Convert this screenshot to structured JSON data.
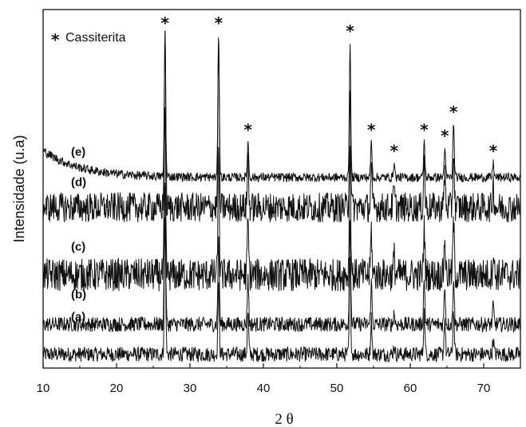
{
  "chart_data": {
    "type": "line",
    "xlabel": "2 θ",
    "ylabel": "Intensidade (u.a)",
    "xlim": [
      10,
      75
    ],
    "x_ticks": [
      10,
      20,
      30,
      40,
      50,
      60,
      70
    ],
    "y_ticks_shown": false,
    "grid": false,
    "legend": {
      "marker": "*",
      "label": "Cassiterita",
      "placement": "top-left"
    },
    "peak_marker": "*",
    "peak_positions": [
      26.6,
      33.9,
      37.9,
      51.8,
      54.7,
      57.8,
      61.9,
      64.7,
      65.9,
      71.3
    ],
    "series": [
      {
        "name": "(a)",
        "baseline": 0.3,
        "noise": 0.25,
        "peaks": [
          {
            "x": 26.6,
            "height": 4.6
          },
          {
            "x": 33.9,
            "height": 2.4
          },
          {
            "x": 37.9,
            "height": 1.4
          },
          {
            "x": 51.8,
            "height": 3.2
          },
          {
            "x": 54.7,
            "height": 1.2
          },
          {
            "x": 57.8,
            "height": 0.3
          },
          {
            "x": 61.9,
            "height": 1.4
          },
          {
            "x": 64.7,
            "height": 1.2
          },
          {
            "x": 65.9,
            "height": 1.5
          },
          {
            "x": 71.3,
            "height": 0.5
          }
        ]
      },
      {
        "name": "(b)",
        "baseline": 1.3,
        "noise": 0.25,
        "peaks": [
          {
            "x": 26.6,
            "height": 5.0
          },
          {
            "x": 33.9,
            "height": 3.0
          },
          {
            "x": 37.9,
            "height": 1.6
          },
          {
            "x": 51.8,
            "height": 3.6
          },
          {
            "x": 54.7,
            "height": 1.4
          },
          {
            "x": 57.8,
            "height": 0.4
          },
          {
            "x": 61.9,
            "height": 1.5
          },
          {
            "x": 64.7,
            "height": 1.3
          },
          {
            "x": 65.9,
            "height": 1.6
          },
          {
            "x": 71.3,
            "height": 0.6
          }
        ]
      },
      {
        "name": "(c)",
        "baseline": 2.95,
        "noise": 0.55,
        "peaks": [
          {
            "x": 26.6,
            "height": 5.5
          },
          {
            "x": 33.9,
            "height": 4.0
          },
          {
            "x": 37.9,
            "height": 1.8
          },
          {
            "x": 51.8,
            "height": 4.5
          },
          {
            "x": 54.7,
            "height": 1.5
          },
          {
            "x": 57.8,
            "height": 0.6
          },
          {
            "x": 61.9,
            "height": 1.7
          },
          {
            "x": 64.7,
            "height": 1.3
          },
          {
            "x": 65.9,
            "height": 1.8
          },
          {
            "x": 71.3,
            "height": 0.8
          }
        ]
      },
      {
        "name": "(d)",
        "baseline": 5.2,
        "noise": 0.5,
        "peaks": [
          {
            "x": 26.6,
            "height": 6.0
          },
          {
            "x": 33.9,
            "height": 5.6
          },
          {
            "x": 37.9,
            "height": 1.7
          },
          {
            "x": 51.8,
            "height": 4.2
          },
          {
            "x": 54.7,
            "height": 1.3
          },
          {
            "x": 57.8,
            "height": 0.6
          },
          {
            "x": 61.9,
            "height": 1.6
          },
          {
            "x": 64.7,
            "height": 1.2
          },
          {
            "x": 65.9,
            "height": 1.9
          },
          {
            "x": 71.3,
            "height": 0.8
          }
        ]
      },
      {
        "name": "(e)",
        "baseline": 6.2,
        "noise": 0.15,
        "peaks": [
          {
            "x": 26.6,
            "height": 4.9
          },
          {
            "x": 33.9,
            "height": 4.9
          },
          {
            "x": 37.9,
            "height": 1.2
          },
          {
            "x": 51.8,
            "height": 4.5
          },
          {
            "x": 54.7,
            "height": 1.2
          },
          {
            "x": 57.8,
            "height": 0.5
          },
          {
            "x": 61.9,
            "height": 1.2
          },
          {
            "x": 64.7,
            "height": 1.0
          },
          {
            "x": 65.9,
            "height": 1.8
          },
          {
            "x": 71.3,
            "height": 0.5
          }
        ]
      }
    ],
    "line_color": "#111111"
  }
}
